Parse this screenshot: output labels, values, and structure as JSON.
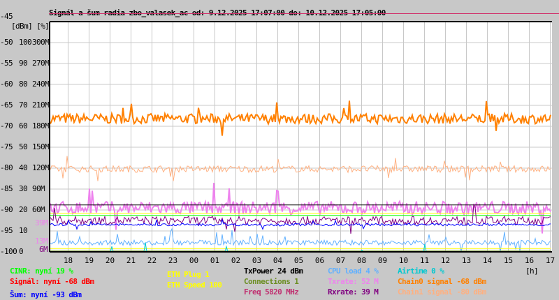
{
  "chart_data": {
    "type": "line",
    "title": "Signál a šum radia zbo_valasek_ac od: 9.12.2025 17:07:00 do: 10.12.2025 17:05:00",
    "ylabel": "[dBm] [%]",
    "xlabel": "[h]",
    "ylim": [
      -100,
      -45
    ],
    "grid": true,
    "y_ticks": [
      {
        "dbm": "-45",
        "pct": "",
        "rate": ""
      },
      {
        "dbm": "-50",
        "pct": "100",
        "rate": "300M"
      },
      {
        "dbm": "-55",
        "pct": "90",
        "rate": "270M"
      },
      {
        "dbm": "-60",
        "pct": "80",
        "rate": "240M"
      },
      {
        "dbm": "-65",
        "pct": "70",
        "rate": "210M"
      },
      {
        "dbm": "-70",
        "pct": "60",
        "rate": "180M"
      },
      {
        "dbm": "-75",
        "pct": "50",
        "rate": "150M"
      },
      {
        "dbm": "-80",
        "pct": "40",
        "rate": "120M"
      },
      {
        "dbm": "-85",
        "pct": "30",
        "rate": "90M"
      },
      {
        "dbm": "-90",
        "pct": "20",
        "rate": "60M"
      },
      {
        "dbm": "-95",
        "pct": "10",
        "rate": ""
      },
      {
        "dbm": "-100",
        "pct": "0",
        "rate": ""
      }
    ],
    "x_ticks": [
      "18",
      "19",
      "20",
      "21",
      "22",
      "23",
      "00",
      "01",
      "02",
      "03",
      "04",
      "05",
      "06",
      "07",
      "08",
      "09",
      "10",
      "11",
      "12",
      "13",
      "14",
      "15",
      "16",
      "17"
    ],
    "x_start_hour": 17.117,
    "inline_labels": [
      {
        "text": "39M",
        "color": "#ee82ee",
        "dbm": -93.5
      },
      {
        "text": "13M",
        "color": "#ee82ee",
        "dbm": -97.8
      },
      {
        "text": "6M",
        "color": "#800080",
        "dbm": -99
      }
    ],
    "series": [
      {
        "name": "Chain0 signal",
        "color": "#ff8000",
        "level_dbm": -68.2,
        "jitter": 1.2
      },
      {
        "name": "Chain1 signal",
        "color": "#ffb080",
        "level_dbm": -80.2,
        "jitter": 0.8
      },
      {
        "name": "Txrate",
        "color": "#ee82ee",
        "level_dbm": -89.5,
        "jitter": 1.6
      },
      {
        "name": "TxPower",
        "color": "#000000",
        "level_dbm": -88.8,
        "jitter": 0
      },
      {
        "name": "ETH Speed",
        "color": "#ffff00",
        "level_dbm": -90.8,
        "jitter": 0
      },
      {
        "name": "CINR",
        "color": "#00ff00",
        "level_dbm": -91.3,
        "jitter": 0
      },
      {
        "name": "Rxrate",
        "color": "#800080",
        "level_dbm": -92.5,
        "jitter": 1.0
      },
      {
        "name": "Šum",
        "color": "#0000ff",
        "level_dbm": -93.5,
        "jitter": 0.3
      },
      {
        "name": "CPU load",
        "color": "#60b0ff",
        "level_dbm": -97.8,
        "jitter": 0.6
      },
      {
        "name": "ETH Plug",
        "color": "#ffff00",
        "level_dbm": -99.2,
        "jitter": 0
      },
      {
        "name": "Connections",
        "color": "#6b8e23",
        "level_dbm": -99.6,
        "jitter": 0
      },
      {
        "name": "Airtime",
        "color": "#00c8d0",
        "level_dbm": -100,
        "jitter": 0
      }
    ]
  },
  "legend": {
    "cinr": {
      "text": "CINR: nyní 19 %",
      "color": "#00ff00"
    },
    "signal": {
      "text": "Signál: nyní -68 dBm",
      "color": "#ff0000"
    },
    "noise": {
      "text": "Šum: nyní -93 dBm",
      "color": "#0000ff"
    },
    "eth_plug": {
      "text": "ETH Plug 1",
      "color": "#ffff00"
    },
    "eth_speed": {
      "text": "ETH Speed 100",
      "color": "#ffff00"
    },
    "txpower": {
      "text": "TxPower 24 dBm",
      "color": "#000000"
    },
    "connections": {
      "text": "Connections 1",
      "color": "#6b8e23"
    },
    "freq": {
      "text": "Freq 5820 MHz",
      "color": "#c03070"
    },
    "cpu": {
      "text": "CPU load 4 %",
      "color": "#60b0ff"
    },
    "txrate": {
      "text": "Txrate: 52 M",
      "color": "#ee82ee"
    },
    "rxrate": {
      "text": "Rxrate: 39 M",
      "color": "#800080"
    },
    "airtime": {
      "text": "Airtime 0 %",
      "color": "#00c8d0"
    },
    "chain0": {
      "text": "Chain0 signal -68 dBm",
      "color": "#ff8000"
    },
    "chain1": {
      "text": "Chain1 signal -80 dBm",
      "color": "#ffb080"
    }
  }
}
